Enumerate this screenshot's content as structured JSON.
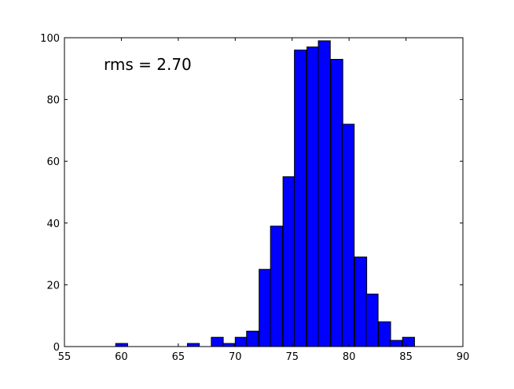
{
  "chart_data": {
    "type": "bar",
    "title": "",
    "xlabel": "",
    "ylabel": "",
    "xlim": [
      55,
      90
    ],
    "ylim": [
      0,
      100
    ],
    "xticks": [
      "55",
      "60",
      "65",
      "70",
      "75",
      "80",
      "85",
      "90"
    ],
    "yticks": [
      "0",
      "20",
      "40",
      "60",
      "80",
      "100"
    ],
    "grid": false,
    "bar_color": "#0000ff",
    "bar_edge_color": "#000000",
    "bin_width": 1.05,
    "bins": [
      {
        "x": 59.5,
        "value": 1
      },
      {
        "x": 65.8,
        "value": 1
      },
      {
        "x": 67.9,
        "value": 3
      },
      {
        "x": 68.9,
        "value": 1
      },
      {
        "x": 70.0,
        "value": 3
      },
      {
        "x": 71.0,
        "value": 5
      },
      {
        "x": 72.1,
        "value": 25
      },
      {
        "x": 73.1,
        "value": 39
      },
      {
        "x": 74.2,
        "value": 55
      },
      {
        "x": 75.2,
        "value": 96
      },
      {
        "x": 76.3,
        "value": 97
      },
      {
        "x": 77.3,
        "value": 99
      },
      {
        "x": 78.4,
        "value": 93
      },
      {
        "x": 79.4,
        "value": 72
      },
      {
        "x": 80.5,
        "value": 29
      },
      {
        "x": 81.5,
        "value": 17
      },
      {
        "x": 82.6,
        "value": 8
      },
      {
        "x": 83.6,
        "value": 2
      },
      {
        "x": 84.7,
        "value": 3
      }
    ],
    "annotation": "rms = 2.70"
  }
}
